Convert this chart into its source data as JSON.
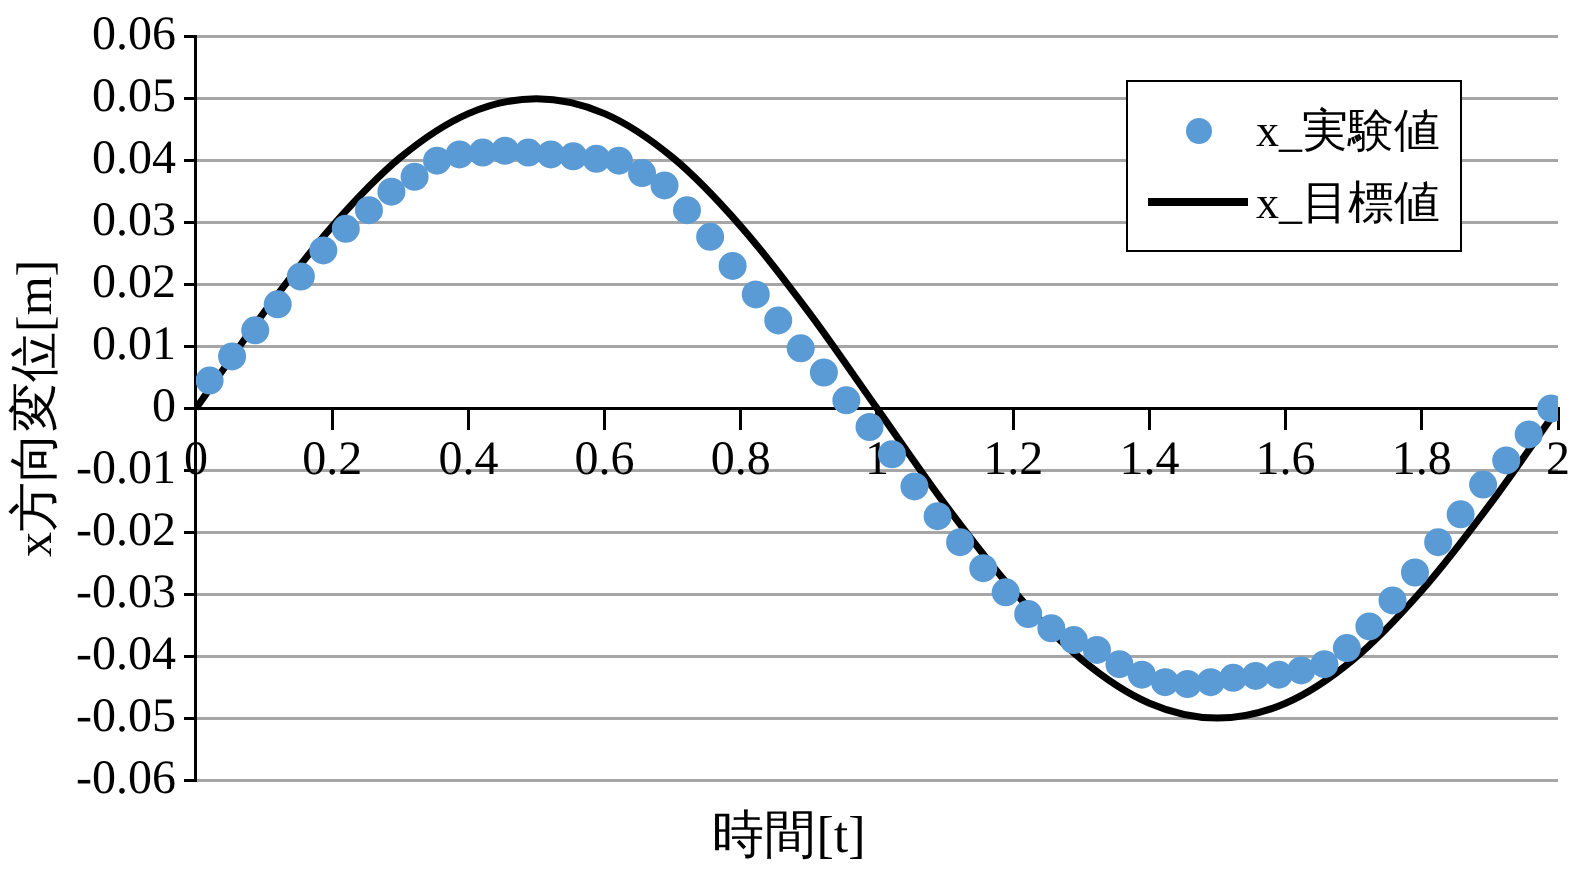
{
  "chart_data": {
    "type": "scatter",
    "xlabel": "時間[t]",
    "ylabel": "x方向変位[m]",
    "xlim": [
      0,
      2
    ],
    "xticks": [
      0,
      0.2,
      0.4,
      0.6,
      0.8,
      1,
      1.2,
      1.4,
      1.6,
      1.8,
      2
    ],
    "ylim": [
      -0.06,
      0.06
    ],
    "yticks": [
      -0.06,
      -0.05,
      -0.04,
      -0.03,
      -0.02,
      -0.01,
      0,
      0.01,
      0.02,
      0.03,
      0.04,
      0.05,
      0.06
    ],
    "grid": "y",
    "legend": "top right",
    "marker": "circle",
    "series": [
      {
        "name": "x_実験値",
        "type": "scatter",
        "color": "#5b9bd5",
        "x": [
          0.02,
          0.053,
          0.087,
          0.12,
          0.154,
          0.187,
          0.22,
          0.254,
          0.287,
          0.321,
          0.354,
          0.387,
          0.421,
          0.454,
          0.488,
          0.521,
          0.554,
          0.588,
          0.621,
          0.655,
          0.688,
          0.721,
          0.755,
          0.788,
          0.822,
          0.855,
          0.888,
          0.922,
          0.955,
          0.989,
          1.022,
          1.055,
          1.089,
          1.122,
          1.156,
          1.189,
          1.222,
          1.256,
          1.289,
          1.323,
          1.356,
          1.389,
          1.423,
          1.456,
          1.49,
          1.523,
          1.556,
          1.59,
          1.623,
          1.657,
          1.69,
          1.723,
          1.757,
          1.79,
          1.824,
          1.857,
          1.89,
          1.924,
          1.957,
          1.99
        ],
        "values": [
          0.0045,
          0.0084,
          0.0126,
          0.0168,
          0.0213,
          0.0255,
          0.029,
          0.032,
          0.035,
          0.0374,
          0.04,
          0.041,
          0.0413,
          0.0416,
          0.0413,
          0.041,
          0.0407,
          0.0403,
          0.04,
          0.038,
          0.036,
          0.032,
          0.0277,
          0.023,
          0.0184,
          0.0142,
          0.0097,
          0.0058,
          0.0013,
          -0.003,
          -0.0074,
          -0.0126,
          -0.0174,
          -0.0216,
          -0.0258,
          -0.0297,
          -0.0332,
          -0.0355,
          -0.0374,
          -0.039,
          -0.0413,
          -0.043,
          -0.0442,
          -0.0445,
          -0.0442,
          -0.0435,
          -0.0432,
          -0.043,
          -0.0423,
          -0.0413,
          -0.0387,
          -0.0352,
          -0.031,
          -0.0265,
          -0.0216,
          -0.0171,
          -0.0123,
          -0.0084,
          -0.0042,
          0
        ]
      },
      {
        "name": "x_目標値",
        "type": "line",
        "color": "#000000",
        "line_style": "solid",
        "marker": "none",
        "x": [
          0,
          0.1,
          0.2,
          0.3,
          0.4,
          0.5,
          0.6,
          0.7,
          0.8,
          0.9,
          1,
          1.1,
          1.2,
          1.3,
          1.4,
          1.5,
          1.6,
          1.7,
          1.8,
          1.9,
          2
        ],
        "values": [
          0,
          0.0155,
          0.0294,
          0.0405,
          0.0476,
          0.05,
          0.0476,
          0.0405,
          0.0294,
          0.0155,
          0,
          -0.0155,
          -0.0294,
          -0.0405,
          -0.0476,
          -0.05,
          -0.0476,
          -0.0405,
          -0.0294,
          -0.0155,
          0
        ]
      }
    ]
  }
}
